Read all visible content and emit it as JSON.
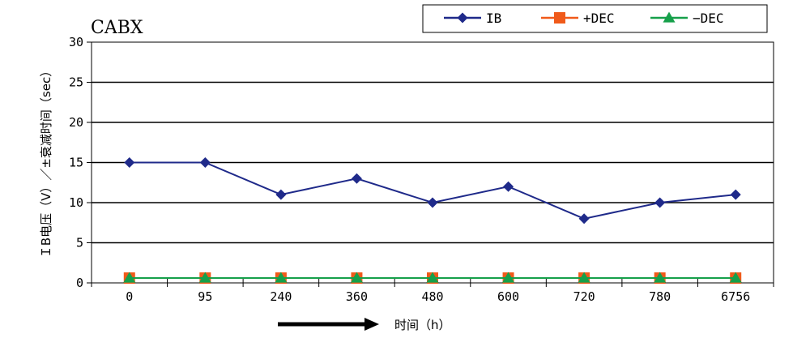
{
  "chart_data": {
    "type": "line",
    "title": "CABX",
    "xlabel": "时间（h）",
    "ylabel": "ＩB电压（V）／±衰减时间（sec）",
    "categories": [
      "0",
      "95",
      "240",
      "360",
      "480",
      "600",
      "720",
      "780",
      "6756"
    ],
    "ylim": [
      0,
      30
    ],
    "yticks": [
      0,
      5,
      10,
      15,
      20,
      25,
      30
    ],
    "grid": true,
    "legend": "top-right",
    "series": [
      {
        "name": "IB",
        "values": [
          15,
          15,
          11,
          13,
          10,
          12,
          8,
          10,
          11
        ],
        "color": "#1f2a8a",
        "marker": "diamond"
      },
      {
        "name": "+DEC",
        "values": [
          0.6,
          0.6,
          0.6,
          0.6,
          0.6,
          0.6,
          0.6,
          0.6,
          0.6
        ],
        "color": "#f05a1a",
        "marker": "square"
      },
      {
        "name": "−DEC",
        "values": [
          0.6,
          0.6,
          0.6,
          0.6,
          0.6,
          0.6,
          0.6,
          0.6,
          0.6
        ],
        "color": "#16a04a",
        "marker": "triangle"
      }
    ]
  }
}
